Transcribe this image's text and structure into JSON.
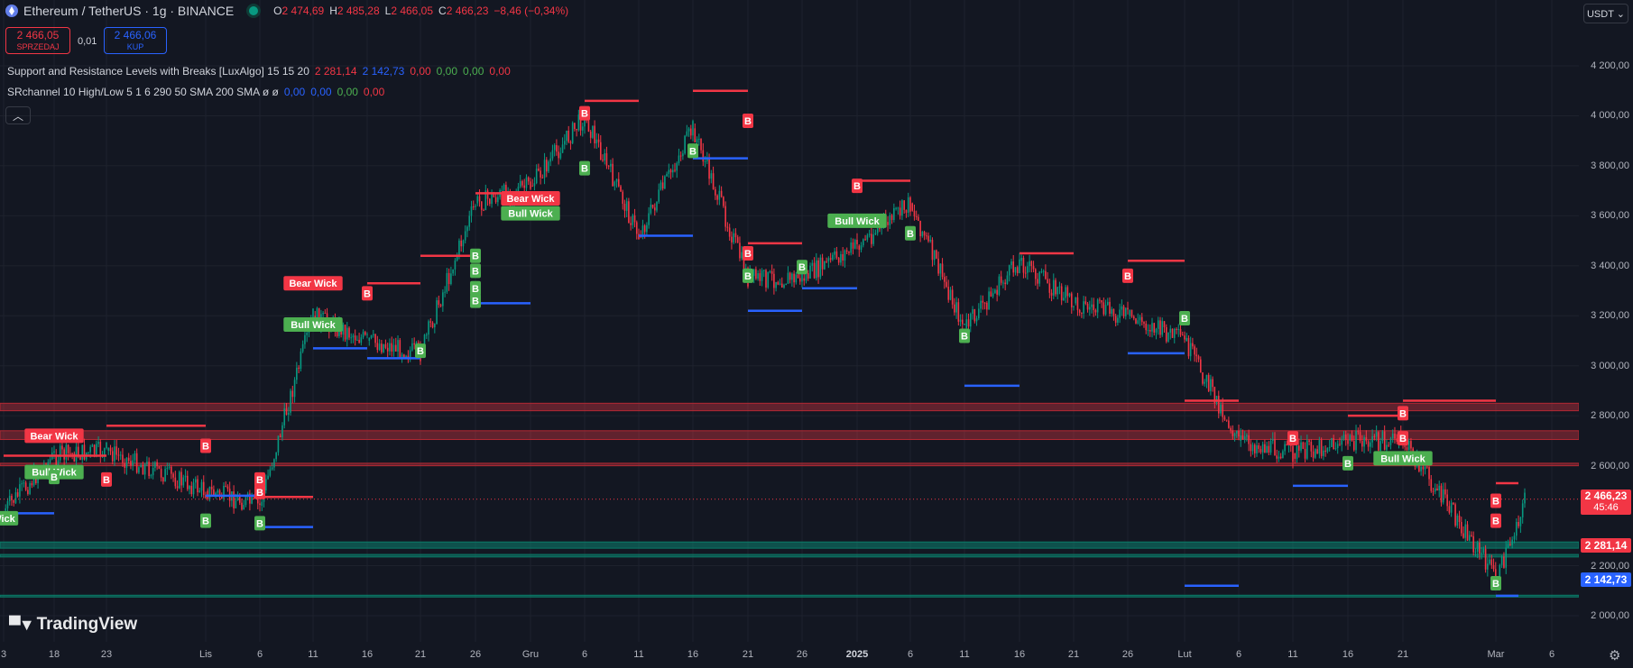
{
  "symbol": {
    "name": "Ethereum / TetherUS · 1g · BINANCE",
    "icon": "ethereum-icon",
    "ohlc": [
      {
        "k": "O",
        "v": "2 474,69"
      },
      {
        "k": "H",
        "v": "2 485,28"
      },
      {
        "k": "L",
        "v": "2 466,05"
      },
      {
        "k": "C",
        "v": "2 466,23"
      }
    ],
    "change": "−8,46 (−0,34%)"
  },
  "trade": {
    "sell_price": "2 466,05",
    "sell_label": "SPRZEDAJ",
    "spread": "0,01",
    "buy_price": "2 466,06",
    "buy_label": "KUP"
  },
  "indicators": [
    {
      "name": "Support and Resistance Levels with Breaks [LuxAlgo] 15 15 20",
      "values": [
        {
          "t": "2 281,14",
          "c": "#f23645"
        },
        {
          "t": "2 142,73",
          "c": "#2962ff"
        },
        {
          "t": "0,00",
          "c": "#f23645"
        },
        {
          "t": "0,00",
          "c": "#4caf50"
        },
        {
          "t": "0,00",
          "c": "#4caf50"
        },
        {
          "t": "0,00",
          "c": "#f23645"
        }
      ]
    },
    {
      "name": "SRchannel 10 High/Low 5 1 6 290 50 SMA 200 SMA  ø ø",
      "values": [
        {
          "t": "0,00",
          "c": "#2962ff"
        },
        {
          "t": "0,00",
          "c": "#2962ff"
        },
        {
          "t": "0,00",
          "c": "#4caf50"
        },
        {
          "t": "0,00",
          "c": "#f23645"
        }
      ]
    }
  ],
  "collapse_icon": "chevron-up-icon",
  "currency_button": "USDT",
  "price_axis": {
    "ticks": [
      "4 200,00",
      "4 000,00",
      "3 800,00",
      "3 600,00",
      "3 400,00",
      "3 200,00",
      "3 000,00",
      "2 800,00",
      "2 600,00",
      "2 200,00",
      "2 000,00"
    ],
    "tick_values": [
      4200,
      4000,
      3800,
      3600,
      3400,
      3200,
      3000,
      2800,
      2600,
      2200,
      2000
    ],
    "current_price": "2 466,23",
    "countdown": "45:46",
    "resistance_label": "2 281,14",
    "support_label": "2 142,73"
  },
  "time_axis": {
    "labels": [
      "3",
      "18",
      "23",
      "Lis",
      "6",
      "11",
      "16",
      "21",
      "26",
      "Gru",
      "6",
      "11",
      "16",
      "21",
      "26",
      "2025",
      "6",
      "11",
      "16",
      "21",
      "26",
      "Lut",
      "6",
      "11",
      "16",
      "21",
      "Mar",
      "6"
    ],
    "bold": [
      "2025"
    ]
  },
  "logo": "TradingView",
  "settings_icon": "gear-icon",
  "colors": {
    "background": "#131722",
    "up": "#089981",
    "down": "#f23645",
    "resistance": "#f23645",
    "support": "#2962ff",
    "bull_label": "#4caf50",
    "bear_label": "#f23645"
  },
  "chart_data": {
    "type": "candlestick",
    "symbol": "ETHUSDT",
    "interval": "1h",
    "ylim": [
      1950,
      4300
    ],
    "x_labels": [
      "3",
      "18",
      "23",
      "Lis",
      "6",
      "11",
      "16",
      "21",
      "26",
      "Gru",
      "6",
      "11",
      "16",
      "21",
      "26",
      "2025",
      "6",
      "11",
      "16",
      "21",
      "26",
      "Lut",
      "6",
      "11",
      "16",
      "21",
      "Mar",
      "6"
    ],
    "price_path": [
      {
        "x": "3",
        "y": 2420
      },
      {
        "x": "18",
        "y": 2640
      },
      {
        "x": "23",
        "y": 2660
      },
      {
        "x": "Lis",
        "y": 2500
      },
      {
        "x": "6",
        "y": 2440
      },
      {
        "x": "11",
        "y": 3200
      },
      {
        "x": "16",
        "y": 3100
      },
      {
        "x": "21",
        "y": 3050
      },
      {
        "x": "26",
        "y": 3650
      },
      {
        "x": "Gru",
        "y": 3720
      },
      {
        "x": "6",
        "y": 4000
      },
      {
        "x": "11",
        "y": 3520
      },
      {
        "x": "16",
        "y": 3950
      },
      {
        "x": "21",
        "y": 3350
      },
      {
        "x": "26",
        "y": 3350
      },
      {
        "x": "2025",
        "y": 3480
      },
      {
        "x": "6",
        "y": 3650
      },
      {
        "x": "11",
        "y": 3150
      },
      {
        "x": "16",
        "y": 3420
      },
      {
        "x": "21",
        "y": 3250
      },
      {
        "x": "26",
        "y": 3200
      },
      {
        "x": "Lut",
        "y": 3100
      },
      {
        "x": "6",
        "y": 2700
      },
      {
        "x": "11",
        "y": 2650
      },
      {
        "x": "16",
        "y": 2700
      },
      {
        "x": "21",
        "y": 2700
      },
      {
        "x": "Mar",
        "y": 2150
      },
      {
        "x": "Mar",
        "y": 2466.23
      }
    ],
    "zones": [
      {
        "kind": "resistance",
        "y_low": 2820,
        "y_high": 2850
      },
      {
        "kind": "resistance",
        "y_low": 2705,
        "y_high": 2740
      },
      {
        "kind": "resistance",
        "y_low": 2600,
        "y_high": 2610
      },
      {
        "kind": "support",
        "y_low": 2270,
        "y_high": 2295
      },
      {
        "kind": "support",
        "y_low": 2235,
        "y_high": 2245
      },
      {
        "kind": "support",
        "y_low": 2075,
        "y_high": 2082
      }
    ],
    "resistance_levels": [
      {
        "x0": "3",
        "x1": "23",
        "y": 2640
      },
      {
        "x0": "23",
        "x1": "Lis",
        "y": 2760
      },
      {
        "x0": "6",
        "x1": "11",
        "y": 2475
      },
      {
        "x0": "16",
        "x1": "21",
        "y": 3330
      },
      {
        "x0": "21",
        "x1": "26",
        "y": 3440
      },
      {
        "x0": "26",
        "x1": "Gru",
        "y": 3690
      },
      {
        "x0": "6",
        "x1": "11",
        "y": 4060
      },
      {
        "x0": "16",
        "x1": "21",
        "y": 4100
      },
      {
        "x0": "21",
        "x1": "26",
        "y": 3490
      },
      {
        "x0": "2025",
        "x1": "6",
        "y": 3740
      },
      {
        "x0": "16",
        "x1": "21",
        "y": 3450
      },
      {
        "x0": "26",
        "x1": "Lut",
        "y": 3420
      },
      {
        "x0": "Lut",
        "x1": "6",
        "y": 2860
      },
      {
        "x0": "16",
        "x1": "21",
        "y": 2800
      },
      {
        "x0": "21",
        "x1": "Mar",
        "y": 2860
      },
      {
        "x0": "Mar",
        "x1": "Mar",
        "y": 2530
      }
    ],
    "support_levels": [
      {
        "x0": "3",
        "x1": "18",
        "y": 2410
      },
      {
        "x0": "Lis",
        "x1": "6",
        "y": 2480
      },
      {
        "x0": "6",
        "x1": "11",
        "y": 2355
      },
      {
        "x0": "11",
        "x1": "16",
        "y": 3070
      },
      {
        "x0": "16",
        "x1": "21",
        "y": 3030
      },
      {
        "x0": "26",
        "x1": "Gru",
        "y": 3250
      },
      {
        "x0": "11",
        "x1": "16",
        "y": 3520
      },
      {
        "x0": "16",
        "x1": "21",
        "y": 3830
      },
      {
        "x0": "21",
        "x1": "26",
        "y": 3220
      },
      {
        "x0": "26",
        "x1": "2025",
        "y": 3310
      },
      {
        "x0": "11",
        "x1": "16",
        "y": 2920
      },
      {
        "x0": "26",
        "x1": "Lut",
        "y": 3050
      },
      {
        "x0": "Lut",
        "x1": "6",
        "y": 2120
      },
      {
        "x0": "11",
        "x1": "16",
        "y": 2520
      },
      {
        "x0": "Mar",
        "x1": "Mar",
        "y": 2080
      }
    ],
    "signals": [
      {
        "x": "3",
        "y": 2390,
        "text": "Wick",
        "kind": "bull"
      },
      {
        "x": "18",
        "y": 2720,
        "text": "Bear Wick",
        "kind": "bear"
      },
      {
        "x": "18",
        "y": 2575,
        "text": "Bull Wick",
        "kind": "bull"
      },
      {
        "x": "18",
        "y": 2555,
        "text": "B",
        "kind": "bull"
      },
      {
        "x": "23",
        "y": 2545,
        "text": "B",
        "kind": "bear"
      },
      {
        "x": "Lis",
        "y": 2380,
        "text": "B",
        "kind": "bull"
      },
      {
        "x": "Lis",
        "y": 2680,
        "text": "B",
        "kind": "bear"
      },
      {
        "x": "6",
        "y": 2545,
        "text": "B",
        "kind": "bear"
      },
      {
        "x": "6",
        "y": 2495,
        "text": "B",
        "kind": "bear"
      },
      {
        "x": "6",
        "y": 2370,
        "text": "B",
        "kind": "bull"
      },
      {
        "x": "11",
        "y": 3330,
        "text": "Bear Wick",
        "kind": "bear"
      },
      {
        "x": "11",
        "y": 3165,
        "text": "Bull Wick",
        "kind": "bull"
      },
      {
        "x": "16",
        "y": 3290,
        "text": "B",
        "kind": "bear"
      },
      {
        "x": "21",
        "y": 3060,
        "text": "B",
        "kind": "bull"
      },
      {
        "x": "26",
        "y": 3310,
        "text": "B",
        "kind": "bull"
      },
      {
        "x": "26",
        "y": 3260,
        "text": "B",
        "kind": "bull"
      },
      {
        "x": "26",
        "y": 3380,
        "text": "B",
        "kind": "bull"
      },
      {
        "x": "26",
        "y": 3440,
        "text": "B",
        "kind": "bull"
      },
      {
        "x": "Gru",
        "y": 3670,
        "text": "Bear Wick",
        "kind": "bear"
      },
      {
        "x": "Gru",
        "y": 3610,
        "text": "Bull Wick",
        "kind": "bull"
      },
      {
        "x": "6",
        "y": 3790,
        "text": "B",
        "kind": "bull"
      },
      {
        "x": "6",
        "y": 4010,
        "text": "B",
        "kind": "bear"
      },
      {
        "x": "16",
        "y": 3860,
        "text": "B",
        "kind": "bull"
      },
      {
        "x": "16",
        "y": 3860,
        "text": "B",
        "kind": "bull"
      },
      {
        "x": "21",
        "y": 3980,
        "text": "B",
        "kind": "bear"
      },
      {
        "x": "21",
        "y": 3450,
        "text": "B",
        "kind": "bear"
      },
      {
        "x": "21",
        "y": 3360,
        "text": "B",
        "kind": "bull"
      },
      {
        "x": "26",
        "y": 3395,
        "text": "B",
        "kind": "bull"
      },
      {
        "x": "2025",
        "y": 3720,
        "text": "B",
        "kind": "bear"
      },
      {
        "x": "2025",
        "y": 3580,
        "text": "Bull Wick",
        "kind": "bull"
      },
      {
        "x": "6",
        "y": 3530,
        "text": "B",
        "kind": "bull"
      },
      {
        "x": "11",
        "y": 3120,
        "text": "B",
        "kind": "bull"
      },
      {
        "x": "26",
        "y": 3360,
        "text": "B",
        "kind": "bear"
      },
      {
        "x": "Lut",
        "y": 3190,
        "text": "B",
        "kind": "bull"
      },
      {
        "x": "11",
        "y": 2710,
        "text": "B",
        "kind": "bear"
      },
      {
        "x": "16",
        "y": 2610,
        "text": "B",
        "kind": "bull"
      },
      {
        "x": "21",
        "y": 2630,
        "text": "Bull Wick",
        "kind": "bull"
      },
      {
        "x": "21",
        "y": 2810,
        "text": "B",
        "kind": "bear"
      },
      {
        "x": "21",
        "y": 2710,
        "text": "B",
        "kind": "bear"
      },
      {
        "x": "Mar",
        "y": 2460,
        "text": "B",
        "kind": "bear"
      },
      {
        "x": "Mar",
        "y": 2380,
        "text": "B",
        "kind": "bear"
      },
      {
        "x": "Mar",
        "y": 2130,
        "text": "B",
        "kind": "bull"
      }
    ]
  }
}
